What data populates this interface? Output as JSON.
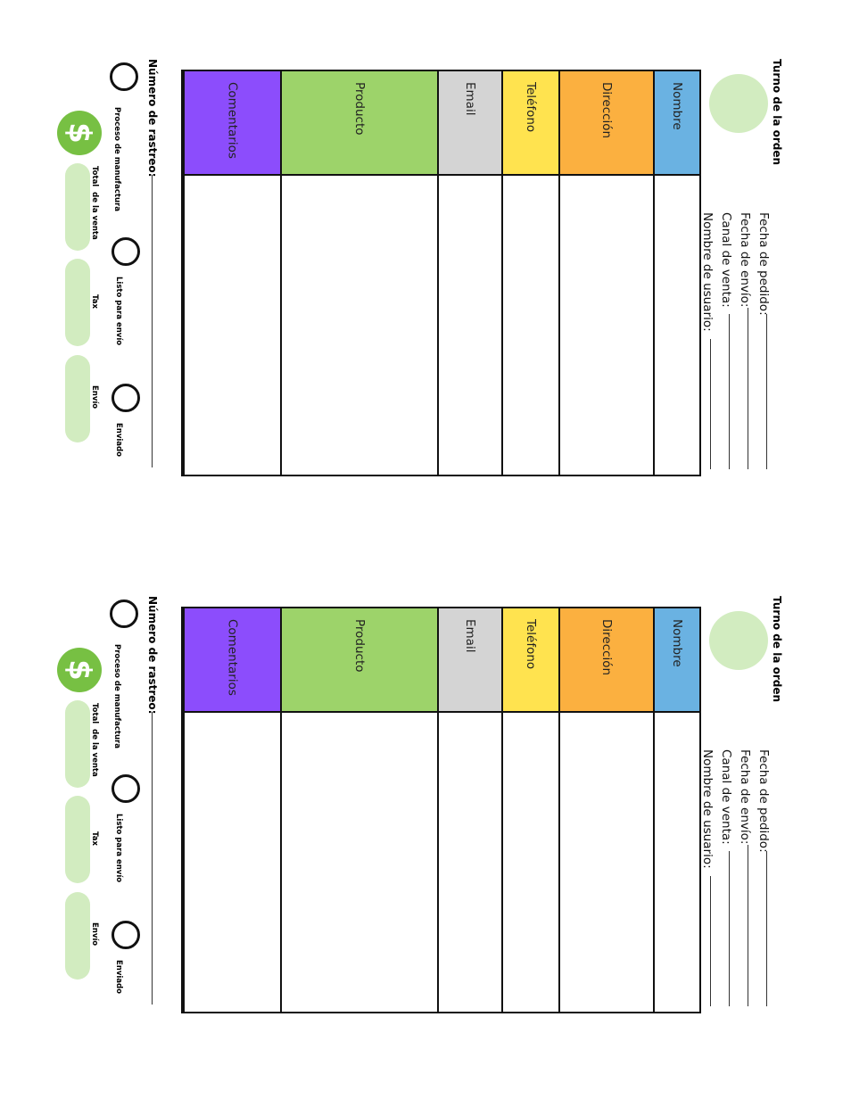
{
  "forms": [
    {
      "title": "Turno de la orden",
      "fields": [
        "Fecha de pedido:",
        "Fecha de envío:",
        "Canal de venta:",
        "Nombre de usuario:"
      ],
      "columns": [
        {
          "label": "Nombre",
          "color": "#6ab2e2"
        },
        {
          "label": "Dirección",
          "color": "#fbb040"
        },
        {
          "label": "Teléfono",
          "color": "#ffe34f"
        },
        {
          "label": "Email",
          "color": "#d4d4d4"
        },
        {
          "label": "Producto",
          "color": "#9dd36a"
        },
        {
          "label": "Comentarios",
          "color": "#8c4dfc"
        }
      ],
      "tracking_label": "Número de rastreo:",
      "status_options": [
        "Proceso de manufactura",
        "Listo para envío",
        "Enviado"
      ],
      "dollar_symbol": "$",
      "totals": [
        "Total  de la venta",
        "Tax",
        "Envío"
      ]
    },
    {
      "title": "Turno de la orden",
      "fields": [
        "Fecha de pedido:",
        "Fecha de envío:",
        "Canal de venta:",
        "Nombre de usuario:"
      ],
      "columns": [
        {
          "label": "Nombre",
          "color": "#6ab2e2"
        },
        {
          "label": "Dirección",
          "color": "#fbb040"
        },
        {
          "label": "Teléfono",
          "color": "#ffe34f"
        },
        {
          "label": "Email",
          "color": "#d4d4d4"
        },
        {
          "label": "Producto",
          "color": "#9dd36a"
        },
        {
          "label": "Comentarios",
          "color": "#8c4dfc"
        }
      ],
      "tracking_label": "Número de rastreo:",
      "status_options": [
        "Proceso de manufactura",
        "Listo para envío",
        "Enviado"
      ],
      "dollar_symbol": "$",
      "totals": [
        "Total  de la venta",
        "Tax",
        "Envío"
      ]
    }
  ]
}
